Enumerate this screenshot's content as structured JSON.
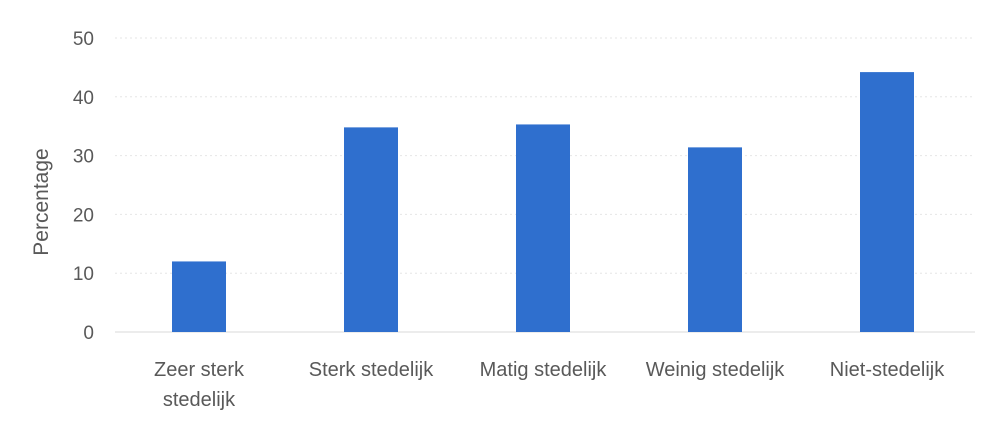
{
  "chart_data": {
    "type": "bar",
    "title": "",
    "xlabel": "",
    "ylabel": "Percentage",
    "ylim": [
      0,
      50
    ],
    "yticks": [
      0,
      10,
      20,
      30,
      40,
      50
    ],
    "grid": true,
    "legend": "none",
    "categories": [
      [
        "Zeer sterk",
        "stedelijk"
      ],
      [
        "Sterk stedelijk"
      ],
      [
        "Matig stedelijk"
      ],
      [
        "Weinig stedelijk"
      ],
      [
        "Niet-stedelijk"
      ]
    ],
    "values": [
      12,
      34.8,
      35.3,
      31.4,
      44.2
    ],
    "bar_color": "#2f6fce"
  }
}
